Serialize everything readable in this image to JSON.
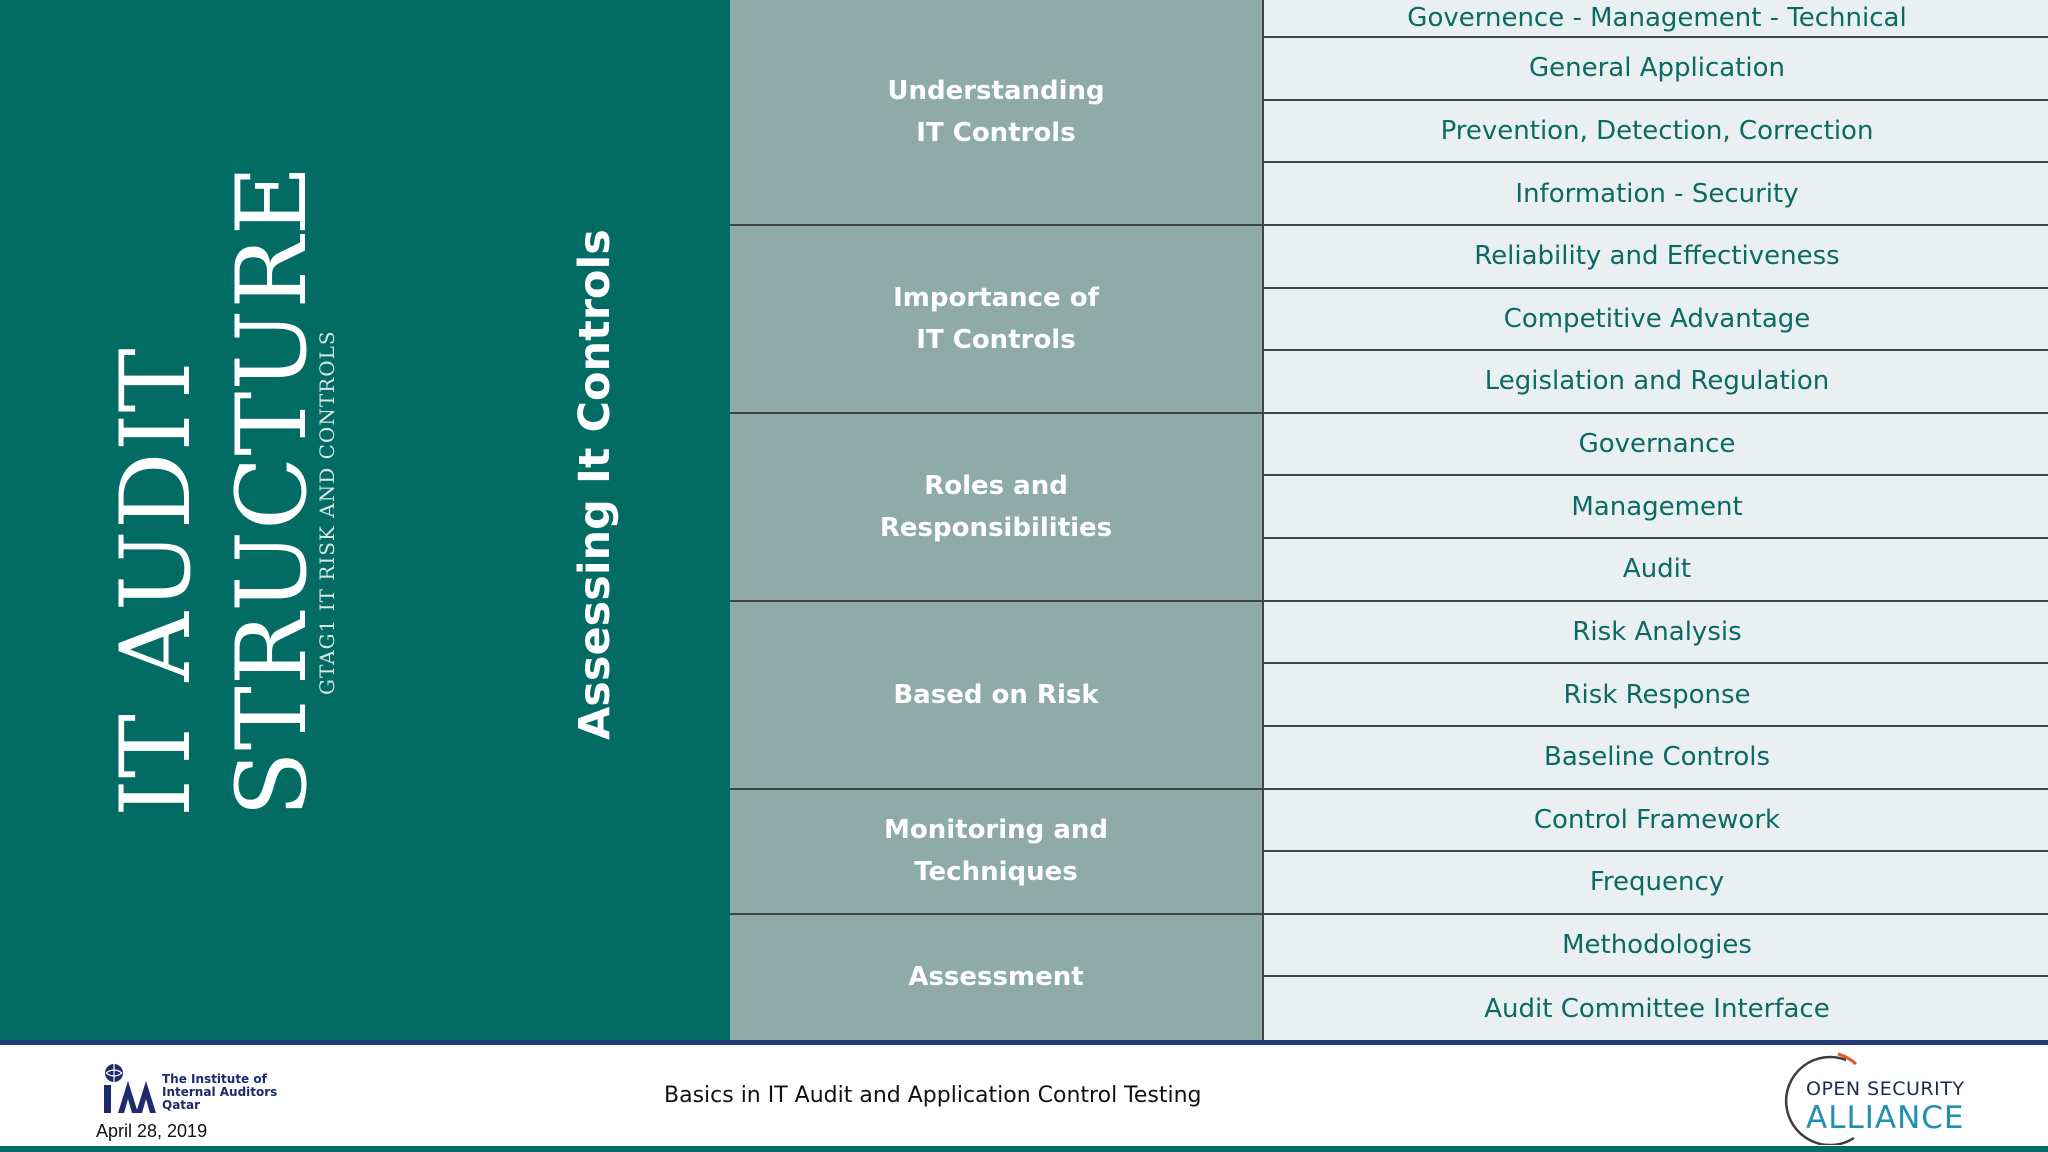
{
  "slide": {
    "title_line1": "IT AUDIT",
    "title_line2": "STRUCTURE",
    "subtitle": "GTAG1   IT RISK AND CONTROLS",
    "section_heading": "Assessing It Controls"
  },
  "colors": {
    "left_panel": "#016b64",
    "category_bg": "#8eaba7",
    "item_bg": "#eaf0f1",
    "item_text": "#0b6a63",
    "footer_rule": "#1e3a78"
  },
  "categories": [
    {
      "label": "Understanding\nIT Controls",
      "items": [
        "Governence - Management - Technical",
        "General Application",
        "Prevention, Detection, Correction",
        "Information - Security"
      ]
    },
    {
      "label": "Importance of\nIT Controls",
      "items": [
        "Reliability and Effectiveness",
        "Competitive Advantage",
        "Legislation and Regulation"
      ]
    },
    {
      "label": "Roles and\nResponsibilities",
      "items": [
        "Governance",
        "Management",
        "Audit"
      ]
    },
    {
      "label": "Based on Risk",
      "items": [
        "Risk Analysis",
        "Risk Response",
        "Baseline Controls"
      ]
    },
    {
      "label": "Monitoring and\nTechniques",
      "items": [
        "Control Framework",
        "Frequency"
      ]
    },
    {
      "label": "Assessment",
      "items": [
        "Methodologies",
        "Audit Committee Interface"
      ]
    }
  ],
  "footer": {
    "org_line1": "The Institute of",
    "org_line2": "Internal Auditors",
    "org_line3": "Qatar",
    "date": "April 28, 2019",
    "presentation_title": "Basics in IT Audit and Application Control Testing",
    "partner_line1": "OPEN SECURITY",
    "partner_line2": "ALLIANCE"
  }
}
